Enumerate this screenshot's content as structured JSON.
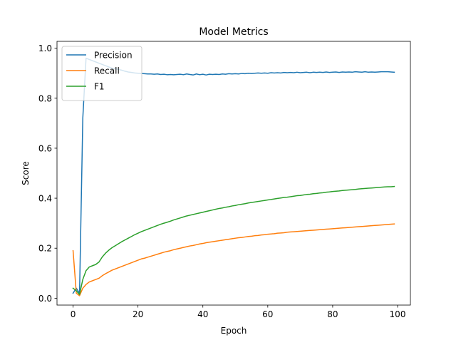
{
  "chart_data": {
    "type": "line",
    "title": "Model Metrics",
    "xlabel": "Epoch",
    "ylabel": "Score",
    "xlim": [
      -4.95,
      103.95
    ],
    "ylim": [
      -0.0275,
      1.0275
    ],
    "x_ticks": [
      0,
      20,
      40,
      60,
      80,
      100
    ],
    "x_tick_labels": [
      "0",
      "20",
      "40",
      "60",
      "80",
      "100"
    ],
    "y_ticks": [
      0.0,
      0.2,
      0.4,
      0.6,
      0.8,
      1.0
    ],
    "y_tick_labels": [
      "0.0",
      "0.2",
      "0.4",
      "0.6",
      "0.8",
      "1.0"
    ],
    "grid": false,
    "legend_position": "top-left",
    "x": [
      0,
      1,
      2,
      3,
      4,
      5,
      6,
      7,
      8,
      9,
      10,
      11,
      12,
      13,
      14,
      15,
      16,
      17,
      18,
      19,
      20,
      21,
      22,
      23,
      24,
      25,
      26,
      27,
      28,
      29,
      30,
      31,
      32,
      33,
      34,
      35,
      36,
      37,
      38,
      39,
      40,
      41,
      42,
      43,
      44,
      45,
      46,
      47,
      48,
      49,
      50,
      51,
      52,
      53,
      54,
      55,
      56,
      57,
      58,
      59,
      60,
      61,
      62,
      63,
      64,
      65,
      66,
      67,
      68,
      69,
      70,
      71,
      72,
      73,
      74,
      75,
      76,
      77,
      78,
      79,
      80,
      81,
      82,
      83,
      84,
      85,
      86,
      87,
      88,
      89,
      90,
      91,
      92,
      93,
      94,
      95,
      96,
      97,
      98,
      99
    ],
    "series": [
      {
        "name": "Precision",
        "color": "#1f77b4",
        "values": [
          0.02,
          0.04,
          0.02,
          0.72,
          0.96,
          0.955,
          0.95,
          0.945,
          0.94,
          0.935,
          0.93,
          0.925,
          0.92,
          0.918,
          0.915,
          0.912,
          0.908,
          0.905,
          0.903,
          0.901,
          0.9,
          0.899,
          0.898,
          0.897,
          0.897,
          0.896,
          0.897,
          0.895,
          0.896,
          0.894,
          0.895,
          0.894,
          0.895,
          0.896,
          0.894,
          0.897,
          0.895,
          0.893,
          0.897,
          0.894,
          0.896,
          0.893,
          0.896,
          0.895,
          0.896,
          0.895,
          0.897,
          0.896,
          0.898,
          0.897,
          0.898,
          0.897,
          0.899,
          0.898,
          0.9,
          0.899,
          0.9,
          0.901,
          0.9,
          0.901,
          0.9,
          0.902,
          0.901,
          0.902,
          0.901,
          0.903,
          0.902,
          0.903,
          0.902,
          0.904,
          0.902,
          0.903,
          0.904,
          0.902,
          0.904,
          0.903,
          0.904,
          0.903,
          0.905,
          0.903,
          0.904,
          0.905,
          0.903,
          0.905,
          0.904,
          0.905,
          0.904,
          0.906,
          0.905,
          0.904,
          0.906,
          0.904,
          0.905,
          0.904,
          0.905,
          0.906,
          0.906,
          0.906,
          0.905,
          0.904
        ]
      },
      {
        "name": "Recall",
        "color": "#ff7f0e",
        "values": [
          0.19,
          0.02,
          0.01,
          0.04,
          0.055,
          0.065,
          0.07,
          0.075,
          0.08,
          0.09,
          0.098,
          0.105,
          0.112,
          0.117,
          0.122,
          0.127,
          0.132,
          0.137,
          0.142,
          0.147,
          0.152,
          0.157,
          0.16,
          0.164,
          0.168,
          0.172,
          0.176,
          0.18,
          0.184,
          0.187,
          0.19,
          0.194,
          0.197,
          0.2,
          0.203,
          0.206,
          0.209,
          0.211,
          0.214,
          0.217,
          0.219,
          0.222,
          0.224,
          0.226,
          0.228,
          0.23,
          0.232,
          0.234,
          0.236,
          0.238,
          0.24,
          0.242,
          0.243,
          0.245,
          0.247,
          0.248,
          0.25,
          0.251,
          0.253,
          0.254,
          0.256,
          0.257,
          0.258,
          0.26,
          0.261,
          0.262,
          0.264,
          0.265,
          0.266,
          0.267,
          0.268,
          0.269,
          0.27,
          0.271,
          0.272,
          0.273,
          0.274,
          0.275,
          0.276,
          0.277,
          0.278,
          0.279,
          0.28,
          0.281,
          0.282,
          0.283,
          0.284,
          0.285,
          0.286,
          0.287,
          0.288,
          0.289,
          0.29,
          0.291,
          0.292,
          0.293,
          0.294,
          0.295,
          0.296,
          0.297
        ]
      },
      {
        "name": "F1",
        "color": "#2ca02c",
        "values": [
          0.04,
          0.03,
          0.015,
          0.075,
          0.11,
          0.125,
          0.13,
          0.135,
          0.145,
          0.165,
          0.18,
          0.192,
          0.202,
          0.21,
          0.218,
          0.226,
          0.233,
          0.24,
          0.247,
          0.254,
          0.26,
          0.266,
          0.271,
          0.276,
          0.281,
          0.286,
          0.291,
          0.296,
          0.3,
          0.304,
          0.308,
          0.313,
          0.317,
          0.321,
          0.325,
          0.329,
          0.332,
          0.335,
          0.338,
          0.341,
          0.344,
          0.347,
          0.35,
          0.353,
          0.356,
          0.359,
          0.361,
          0.364,
          0.366,
          0.369,
          0.371,
          0.374,
          0.376,
          0.378,
          0.381,
          0.383,
          0.385,
          0.387,
          0.389,
          0.391,
          0.393,
          0.395,
          0.397,
          0.399,
          0.401,
          0.403,
          0.404,
          0.406,
          0.408,
          0.41,
          0.411,
          0.413,
          0.415,
          0.416,
          0.418,
          0.419,
          0.421,
          0.422,
          0.424,
          0.425,
          0.427,
          0.428,
          0.429,
          0.431,
          0.432,
          0.433,
          0.434,
          0.435,
          0.437,
          0.438,
          0.439,
          0.44,
          0.441,
          0.442,
          0.443,
          0.444,
          0.445,
          0.446,
          0.446,
          0.447
        ]
      }
    ]
  }
}
